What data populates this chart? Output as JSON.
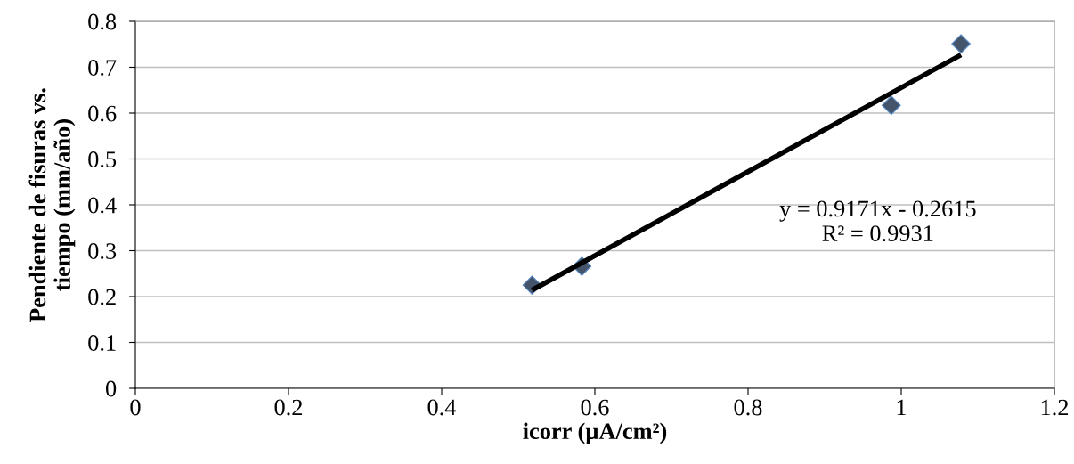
{
  "chart_data": {
    "type": "scatter",
    "xlabel": "icorr (µA/cm²)",
    "ylabel": "Pendiente de fisuras vs.\ntiempo (mm/año)",
    "series": [
      {
        "color": "#44546a",
        "marker": "diamond",
        "x": [
          0.518,
          0.583,
          0.987,
          1.078
        ],
        "values": [
          0.225,
          0.266,
          0.617,
          0.751
        ]
      },
      {
        "type": "line",
        "color": "#000000",
        "marker": "none",
        "line_style": "solid",
        "x": [
          0.518,
          1.078
        ],
        "values": [
          0.214,
          0.727
        ]
      }
    ],
    "annotations": [
      "y = 0.9171x - 0.2615\nR² = 0.9931"
    ],
    "xlim": [
      0,
      1.2
    ],
    "xticks": [
      0,
      0.2,
      0.4,
      0.6,
      0.8,
      1,
      1.2
    ],
    "ylim": [
      0,
      0.8
    ],
    "yticks": [
      0,
      0.1,
      0.2,
      0.3,
      0.4,
      0.5,
      0.6,
      0.7,
      0.8
    ],
    "grid": "y",
    "legend": false
  }
}
